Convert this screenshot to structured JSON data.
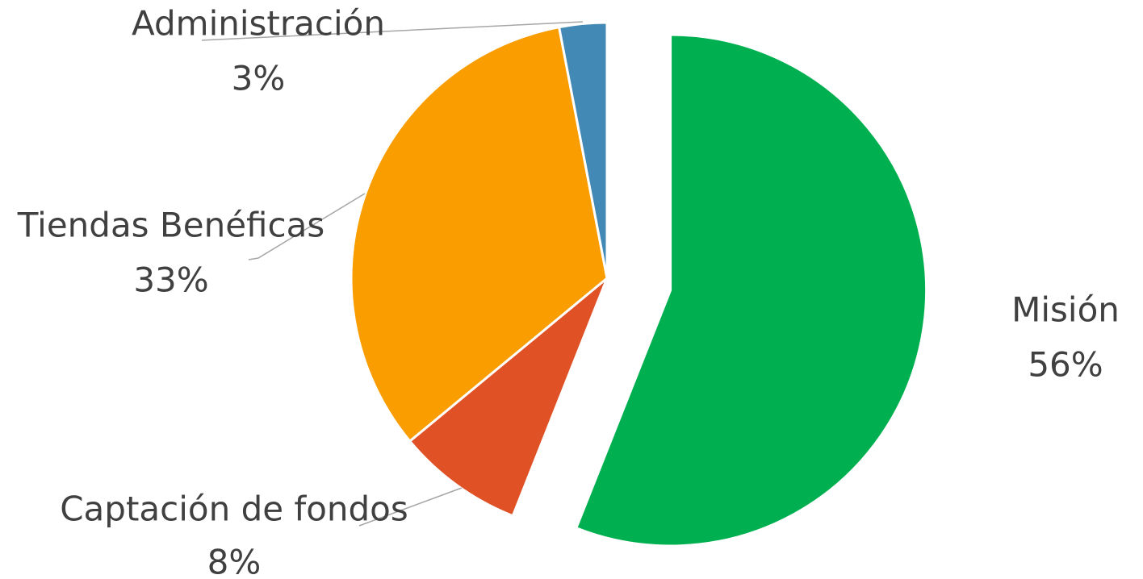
{
  "chart_data": {
    "type": "pie",
    "categories": [
      "Misión",
      "Captación de fondos",
      "Tiendas Benéficas",
      "Administración"
    ],
    "values": [
      56,
      8,
      33,
      3
    ],
    "value_labels": [
      "56%",
      "8%",
      "33%",
      "3%"
    ],
    "colors": [
      "#00b050",
      "#e05226",
      "#f99d00",
      "#428ab5"
    ],
    "exploded": [
      0
    ]
  }
}
